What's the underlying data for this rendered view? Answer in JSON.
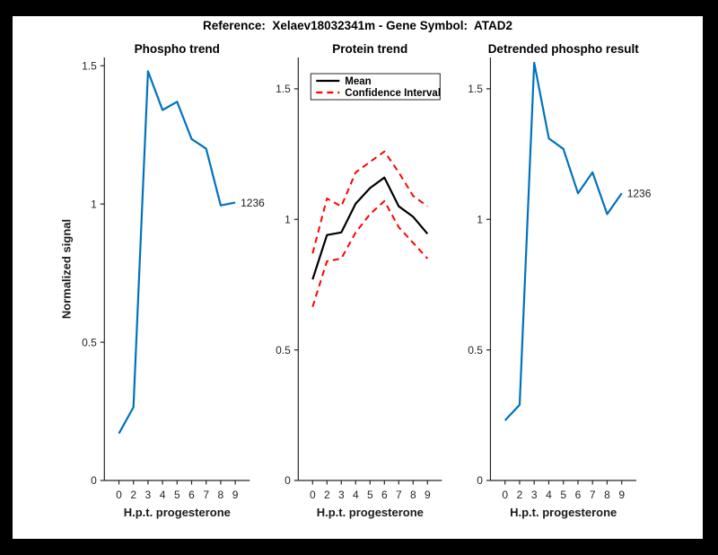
{
  "figure_title": "Reference:  Xelaev18032341m - Gene Symbol:  ATAD2",
  "colors": {
    "page_background": "#000000",
    "figure_background": "#FFFFFF",
    "axis": "#262626",
    "phospho_line_blue": "#0072BD",
    "mean_line_black": "#000000",
    "confidence_interval_red": "#FF0000"
  },
  "chart_data": [
    {
      "type": "line",
      "title": "Phospho trend",
      "xlabel": "H.p.t. progesterone",
      "ylabel": "Normalized signal",
      "x_scale": "equal-spacing",
      "x": [
        0,
        2,
        3,
        4,
        5,
        6,
        7,
        8,
        9
      ],
      "xtick_labels": [
        "0",
        "2",
        "3",
        "4",
        "5",
        "6",
        "7",
        "8",
        "9"
      ],
      "yticks": [
        0,
        0.5,
        1,
        1.5
      ],
      "ytick_labels": [
        "0",
        "0.5",
        "1",
        "1.5"
      ],
      "ylim": [
        0,
        1.53
      ],
      "grid": false,
      "series": [
        {
          "name": "1236 phospho signal",
          "color": "#0072BD",
          "dash": "solid",
          "width": 2.2,
          "values": [
            0.17,
            0.265,
            1.48,
            1.34,
            1.37,
            1.235,
            1.2,
            0.995,
            1.005
          ]
        }
      ],
      "end_label": "1236"
    },
    {
      "type": "line",
      "title": "Protein trend",
      "xlabel": "H.p.t. progesterone",
      "ylabel": "",
      "x_scale": "equal-spacing",
      "x": [
        0,
        2,
        3,
        4,
        5,
        6,
        7,
        8,
        9
      ],
      "xtick_labels": [
        "0",
        "2",
        "3",
        "4",
        "5",
        "6",
        "7",
        "8",
        "9"
      ],
      "yticks": [
        0,
        0.5,
        1,
        1.5
      ],
      "ytick_labels": [
        "0",
        "0.5",
        "1",
        "1.5"
      ],
      "ylim": [
        0,
        1.62
      ],
      "grid": false,
      "series": [
        {
          "name": "Mean",
          "color": "#000000",
          "dash": "solid",
          "width": 2.2,
          "values": [
            0.77,
            0.94,
            0.95,
            1.06,
            1.12,
            1.16,
            1.05,
            1.01,
            0.945
          ]
        },
        {
          "name": "Confidence Interval upper bound",
          "color": "#FF0000",
          "dash": "dashed",
          "width": 2,
          "values": [
            0.87,
            1.08,
            1.05,
            1.18,
            1.22,
            1.26,
            1.18,
            1.09,
            1.05
          ]
        },
        {
          "name": "Confidence Interval lower bound",
          "color": "#FF0000",
          "dash": "dashed",
          "width": 2,
          "values": [
            0.665,
            0.84,
            0.85,
            0.95,
            1.02,
            1.07,
            0.97,
            0.91,
            0.85
          ]
        }
      ],
      "legend": {
        "position": "top-left",
        "entries": [
          {
            "label": "Mean",
            "color": "#000000",
            "dash": "solid"
          },
          {
            "label": "Confidence Interval",
            "color": "#FF0000",
            "dash": "dashed"
          }
        ]
      }
    },
    {
      "type": "line",
      "title": "Detrended phospho result",
      "xlabel": "H.p.t. progesterone",
      "ylabel": "",
      "x_scale": "equal-spacing",
      "x": [
        0,
        2,
        3,
        4,
        5,
        6,
        7,
        8,
        9
      ],
      "xtick_labels": [
        "0",
        "2",
        "3",
        "4",
        "5",
        "6",
        "7",
        "8",
        "9"
      ],
      "yticks": [
        0,
        0.5,
        1,
        1.5
      ],
      "ytick_labels": [
        "0",
        "0.5",
        "1",
        "1.5"
      ],
      "ylim": [
        0,
        1.62
      ],
      "grid": false,
      "series": [
        {
          "name": "1236 detrended phospho signal",
          "color": "#0072BD",
          "dash": "solid",
          "width": 2.2,
          "values": [
            0.23,
            0.29,
            1.6,
            1.31,
            1.27,
            1.1,
            1.18,
            1.02,
            1.1
          ]
        }
      ],
      "end_label": "1236"
    }
  ]
}
